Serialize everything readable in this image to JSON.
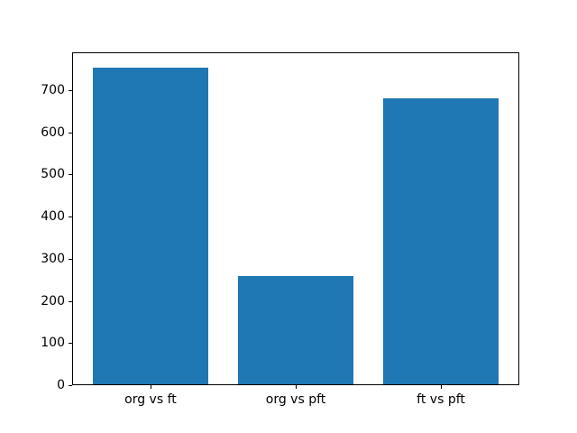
{
  "figure": {
    "background_color": "#ffffff",
    "axis_color": "#000000",
    "tick_label_color": "#000000"
  },
  "chart_data": {
    "type": "bar",
    "title": "",
    "xlabel": "",
    "ylabel": "",
    "categories": [
      "org vs ft",
      "org vs pft",
      "ft vs pft"
    ],
    "values": [
      753,
      259,
      680
    ],
    "bar_color": "#1f77b4",
    "bar_width_units": 0.8,
    "ylim": [
      0,
      790
    ],
    "yticks": [
      0,
      100,
      200,
      300,
      400,
      500,
      600,
      700
    ],
    "grid": false,
    "legend": "none"
  }
}
